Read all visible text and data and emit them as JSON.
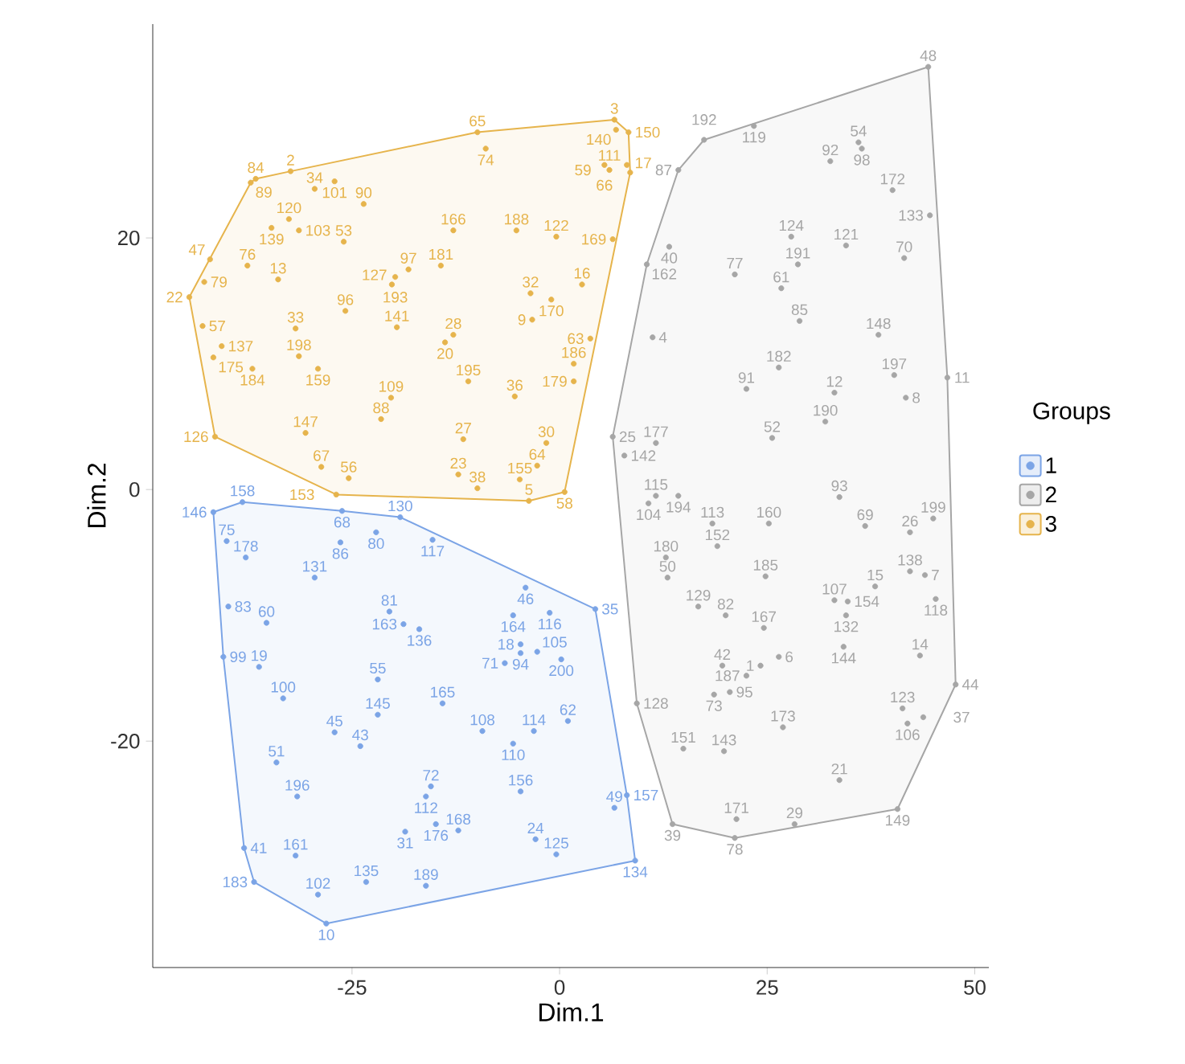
{
  "chart_data": {
    "type": "scatter",
    "xlabel": "Dim.1",
    "ylabel": "Dim.2",
    "legend_title": "Groups",
    "legend": "right",
    "marker": "circle",
    "grid": false,
    "xlim": [
      -49,
      51.7
    ],
    "ylim": [
      -38,
      37
    ],
    "xticks": [
      -25,
      0,
      25,
      50
    ],
    "yticks": [
      -20,
      0,
      20
    ],
    "series": [
      {
        "name": "1",
        "color": "#7ba4e6",
        "x": [
          -41.7,
          -38.2,
          -19.2,
          -26.2,
          -22.1,
          -40.1,
          -26.4,
          -15.3,
          -37.8,
          -29.5,
          -4.1,
          -5.6,
          -1.2,
          4.3,
          -39.9,
          -20.5,
          -35.3,
          -18.8,
          -16.9,
          -4.7,
          -4.7,
          -2.7,
          -6.6,
          0.2,
          -40.5,
          -36.2,
          -33.3,
          -21.9,
          -14.1,
          -21.9,
          -9.3,
          -3.1,
          1.0,
          -27.1,
          -24.0,
          -5.6,
          -34.1,
          -15.5,
          -16.1,
          -4.7,
          8.1,
          6.6,
          -31.6,
          -14.9,
          -18.6,
          -12.2,
          -2.9,
          -0.4,
          9.1,
          -38.0,
          -31.8,
          -36.8,
          -23.3,
          -16.1,
          -29.1,
          -28.1
        ],
        "values": [
          -1.8,
          -1.0,
          -2.2,
          -1.7,
          -3.4,
          -4.1,
          -4.2,
          -4.0,
          -5.4,
          -7.0,
          -7.8,
          -10.0,
          -9.8,
          -9.5,
          -9.3,
          -9.7,
          -10.6,
          -10.7,
          -11.1,
          -12.3,
          -13.0,
          -12.9,
          -13.8,
          -13.5,
          -13.3,
          -14.1,
          -16.6,
          -15.1,
          -17.0,
          -17.9,
          -19.2,
          -19.2,
          -18.4,
          -19.3,
          -20.4,
          -20.2,
          -21.7,
          -23.6,
          -24.4,
          -24.0,
          -24.3,
          -25.3,
          -24.4,
          -26.6,
          -27.2,
          -27.1,
          -27.8,
          -29.0,
          -29.5,
          -28.5,
          -29.1,
          -31.2,
          -31.2,
          -31.5,
          -32.2,
          -34.5
        ]
      },
      {
        "name": "2",
        "color": "#a6a6a6",
        "x": [
          44.4,
          23.4,
          17.4,
          14.3,
          36.0,
          36.4,
          32.6,
          40.1,
          44.6,
          13.2,
          27.9,
          34.5,
          41.5,
          10.5,
          21.1,
          28.7,
          26.7,
          28.9,
          38.4,
          11.2,
          26.4,
          40.3,
          46.7,
          22.5,
          33.1,
          41.7,
          6.4,
          11.6,
          32.0,
          25.6,
          7.8,
          11.6,
          10.7,
          14.3,
          45.0,
          18.4,
          25.2,
          33.7,
          36.8,
          42.2,
          12.8,
          19.0,
          13.0,
          24.8,
          42.2,
          44.0,
          38.0,
          33.1,
          34.7,
          45.3,
          16.7,
          20.0,
          24.6,
          34.5,
          26.4,
          24.2,
          19.6,
          22.5,
          34.2,
          43.4,
          9.3,
          18.6,
          20.5,
          26.9,
          41.3,
          43.8,
          41.9,
          47.7,
          14.9,
          19.8,
          33.7,
          13.6,
          21.3,
          28.3,
          21.1,
          40.7
        ],
        "values": [
          33.6,
          28.9,
          27.8,
          25.4,
          27.6,
          27.1,
          26.1,
          23.8,
          21.8,
          19.3,
          20.1,
          19.4,
          18.4,
          17.9,
          17.1,
          17.9,
          16.0,
          13.4,
          12.3,
          12.1,
          9.7,
          9.1,
          8.9,
          8.0,
          7.7,
          7.3,
          4.2,
          3.7,
          5.4,
          4.1,
          2.7,
          -0.5,
          -1.1,
          -0.5,
          -2.3,
          -2.7,
          -2.7,
          -0.6,
          -2.9,
          -3.4,
          -5.4,
          -4.5,
          -7.0,
          -6.9,
          -6.5,
          -6.8,
          -7.7,
          -8.8,
          -8.9,
          -8.7,
          -9.3,
          -10.0,
          -11.0,
          -10.0,
          -13.3,
          -14.0,
          -14.0,
          -14.8,
          -12.5,
          -13.2,
          -17.0,
          -16.3,
          -16.1,
          -18.9,
          -17.4,
          -18.1,
          -18.6,
          -15.5,
          -20.6,
          -20.8,
          -23.1,
          -26.6,
          -26.2,
          -26.6,
          -27.7,
          -25.4
        ]
      },
      {
        "name": "3",
        "color": "#e6b44c",
        "x": [
          -9.9,
          6.6,
          6.8,
          8.3,
          8.1,
          8.5,
          5.4,
          6.0,
          -8.9,
          -36.6,
          -32.4,
          -27.1,
          -37.2,
          -29.5,
          -32.6,
          -23.6,
          -34.7,
          -31.4,
          -26.0,
          -18.2,
          -12.8,
          -5.2,
          -0.4,
          6.4,
          -42.8,
          -42.1,
          -37.6,
          -33.9,
          -19.8,
          -20.2,
          -14.3,
          -3.5,
          2.7,
          -1.0,
          -44.6,
          -43.0,
          -31.8,
          -25.8,
          -19.6,
          -12.8,
          -13.8,
          -3.3,
          1.7,
          3.7,
          -40.7,
          -41.7,
          -31.4,
          -37.0,
          -29.1,
          -20.3,
          1.7,
          -5.4,
          -11.0,
          -11.6,
          -21.5,
          -30.6,
          -41.5,
          -1.6,
          -2.7,
          -28.7,
          -25.4,
          -12.2,
          -4.8,
          0.6,
          -26.9,
          -9.9,
          -3.7
        ],
        "values": [
          28.4,
          29.4,
          28.6,
          28.4,
          25.8,
          25.2,
          25.8,
          25.4,
          27.1,
          24.7,
          25.3,
          24.5,
          24.4,
          23.9,
          21.5,
          22.7,
          20.8,
          20.6,
          19.7,
          17.5,
          20.6,
          20.6,
          20.1,
          19.9,
          16.5,
          18.3,
          17.8,
          16.7,
          16.9,
          16.3,
          17.8,
          15.6,
          16.3,
          15.1,
          15.3,
          13.0,
          12.8,
          14.2,
          12.9,
          12.3,
          11.7,
          13.5,
          10.0,
          12.0,
          11.4,
          10.5,
          10.6,
          9.6,
          9.6,
          7.3,
          8.6,
          7.4,
          8.6,
          4.0,
          5.6,
          4.5,
          4.2,
          3.7,
          1.9,
          1.8,
          0.9,
          1.2,
          0.8,
          -0.2,
          -0.4,
          0.1,
          -0.9
        ]
      }
    ],
    "annotations": [
      {
        "text": "146",
        "x": -41.7,
        "y": -1.8
      },
      {
        "text": "158",
        "x": -38.2,
        "y": -1.0
      },
      {
        "text": "130",
        "x": -19.2,
        "y": -2.2
      },
      {
        "text": "68",
        "x": -26.2,
        "y": -1.7
      },
      {
        "text": "80",
        "x": -22.1,
        "y": -3.4
      },
      {
        "text": "75",
        "x": -40.1,
        "y": -4.1
      },
      {
        "text": "86",
        "x": -26.4,
        "y": -4.2
      },
      {
        "text": "117",
        "x": -15.3,
        "y": -4.0
      },
      {
        "text": "178",
        "x": -37.8,
        "y": -5.4
      },
      {
        "text": "131",
        "x": -29.5,
        "y": -7.0
      },
      {
        "text": "46",
        "x": -4.1,
        "y": -7.8
      },
      {
        "text": "164",
        "x": -5.6,
        "y": -10.0
      },
      {
        "text": "116",
        "x": -1.2,
        "y": -9.8
      },
      {
        "text": "35",
        "x": 4.3,
        "y": -9.5
      },
      {
        "text": "83",
        "x": -39.9,
        "y": -9.3
      },
      {
        "text": "81",
        "x": -20.5,
        "y": -9.7
      },
      {
        "text": "60",
        "x": -35.3,
        "y": -10.6
      },
      {
        "text": "163",
        "x": -18.8,
        "y": -10.7
      },
      {
        "text": "136",
        "x": -16.9,
        "y": -11.1
      },
      {
        "text": "18",
        "x": -4.7,
        "y": -12.3
      },
      {
        "text": "94",
        "x": -4.7,
        "y": -13.0
      },
      {
        "text": "105",
        "x": -2.7,
        "y": -12.9
      },
      {
        "text": "71",
        "x": -6.6,
        "y": -13.8
      },
      {
        "text": "200",
        "x": 0.2,
        "y": -13.5
      },
      {
        "text": "99",
        "x": -40.5,
        "y": -13.3
      },
      {
        "text": "19",
        "x": -36.2,
        "y": -14.1
      },
      {
        "text": "100",
        "x": -33.3,
        "y": -16.6
      },
      {
        "text": "55",
        "x": -21.9,
        "y": -15.1
      },
      {
        "text": "165",
        "x": -14.1,
        "y": -17.0
      },
      {
        "text": "145",
        "x": -21.9,
        "y": -17.9
      },
      {
        "text": "108",
        "x": -9.3,
        "y": -19.2
      },
      {
        "text": "114",
        "x": -3.1,
        "y": -19.2
      },
      {
        "text": "62",
        "x": 1.0,
        "y": -18.4
      },
      {
        "text": "45",
        "x": -27.1,
        "y": -19.3
      },
      {
        "text": "43",
        "x": -24.0,
        "y": -20.4
      },
      {
        "text": "110",
        "x": -5.6,
        "y": -20.2
      },
      {
        "text": "51",
        "x": -34.1,
        "y": -21.7
      },
      {
        "text": "72",
        "x": -15.5,
        "y": -23.6
      },
      {
        "text": "112",
        "x": -16.1,
        "y": -24.4
      },
      {
        "text": "156",
        "x": -4.7,
        "y": -24.0
      },
      {
        "text": "157",
        "x": 8.1,
        "y": -24.3
      },
      {
        "text": "49",
        "x": 6.6,
        "y": -25.3
      },
      {
        "text": "196",
        "x": -31.6,
        "y": -24.4
      },
      {
        "text": "176",
        "x": -14.9,
        "y": -26.6
      },
      {
        "text": "31",
        "x": -18.6,
        "y": -27.2
      },
      {
        "text": "168",
        "x": -12.2,
        "y": -27.1
      },
      {
        "text": "24",
        "x": -2.9,
        "y": -27.8
      },
      {
        "text": "125",
        "x": -0.4,
        "y": -29.0
      },
      {
        "text": "134",
        "x": 9.1,
        "y": -29.5
      },
      {
        "text": "41",
        "x": -38.0,
        "y": -28.5
      },
      {
        "text": "161",
        "x": -31.8,
        "y": -29.1
      },
      {
        "text": "183",
        "x": -36.8,
        "y": -31.2
      },
      {
        "text": "135",
        "x": -23.3,
        "y": -31.2
      },
      {
        "text": "189",
        "x": -16.1,
        "y": -31.5
      },
      {
        "text": "102",
        "x": -29.1,
        "y": -32.2
      },
      {
        "text": "10",
        "x": -28.1,
        "y": -34.5
      },
      {
        "text": "48",
        "x": 44.4,
        "y": 33.6
      },
      {
        "text": "119",
        "x": 23.4,
        "y": 28.9
      },
      {
        "text": "192",
        "x": 17.4,
        "y": 27.8
      },
      {
        "text": "87",
        "x": 14.3,
        "y": 25.4
      },
      {
        "text": "54",
        "x": 36.0,
        "y": 27.6
      },
      {
        "text": "98",
        "x": 36.4,
        "y": 27.1
      },
      {
        "text": "92",
        "x": 32.6,
        "y": 26.1
      },
      {
        "text": "172",
        "x": 40.1,
        "y": 23.8
      },
      {
        "text": "133",
        "x": 44.6,
        "y": 21.8
      },
      {
        "text": "40",
        "x": 13.2,
        "y": 19.3
      },
      {
        "text": "124",
        "x": 27.9,
        "y": 20.1
      },
      {
        "text": "121",
        "x": 34.5,
        "y": 19.4
      },
      {
        "text": "70",
        "x": 41.5,
        "y": 18.4
      },
      {
        "text": "162",
        "x": 10.5,
        "y": 17.9
      },
      {
        "text": "77",
        "x": 21.1,
        "y": 17.1
      },
      {
        "text": "191",
        "x": 28.7,
        "y": 17.9
      },
      {
        "text": "61",
        "x": 26.7,
        "y": 16.0
      },
      {
        "text": "85",
        "x": 28.9,
        "y": 13.4
      },
      {
        "text": "148",
        "x": 38.4,
        "y": 12.3
      },
      {
        "text": "4",
        "x": 11.2,
        "y": 12.1
      },
      {
        "text": "182",
        "x": 26.4,
        "y": 9.7
      },
      {
        "text": "197",
        "x": 40.3,
        "y": 9.1
      },
      {
        "text": "11",
        "x": 46.7,
        "y": 8.9
      },
      {
        "text": "91",
        "x": 22.5,
        "y": 8.0
      },
      {
        "text": "12",
        "x": 33.1,
        "y": 7.7
      },
      {
        "text": "8",
        "x": 41.7,
        "y": 7.3
      },
      {
        "text": "25",
        "x": 6.4,
        "y": 4.2
      },
      {
        "text": "177",
        "x": 11.6,
        "y": 3.7
      },
      {
        "text": "190",
        "x": 32.0,
        "y": 5.4
      },
      {
        "text": "52",
        "x": 25.6,
        "y": 4.1
      },
      {
        "text": "142",
        "x": 7.8,
        "y": 2.7
      },
      {
        "text": "115",
        "x": 11.6,
        "y": -0.5
      },
      {
        "text": "104",
        "x": 10.7,
        "y": -1.1
      },
      {
        "text": "194",
        "x": 14.3,
        "y": -0.5
      },
      {
        "text": "199",
        "x": 45.0,
        "y": -2.3
      },
      {
        "text": "113",
        "x": 18.4,
        "y": -2.7
      },
      {
        "text": "160",
        "x": 25.2,
        "y": -2.7
      },
      {
        "text": "93",
        "x": 33.7,
        "y": -0.6
      },
      {
        "text": "69",
        "x": 36.8,
        "y": -2.9
      },
      {
        "text": "26",
        "x": 42.2,
        "y": -3.4
      },
      {
        "text": "180",
        "x": 12.8,
        "y": -5.4
      },
      {
        "text": "152",
        "x": 19.0,
        "y": -4.5
      },
      {
        "text": "50",
        "x": 13.0,
        "y": -7.0
      },
      {
        "text": "185",
        "x": 24.8,
        "y": -6.9
      },
      {
        "text": "138",
        "x": 42.2,
        "y": -6.5
      },
      {
        "text": "7",
        "x": 44.0,
        "y": -6.8
      },
      {
        "text": "15",
        "x": 38.0,
        "y": -7.7
      },
      {
        "text": "107",
        "x": 33.1,
        "y": -8.8
      },
      {
        "text": "154",
        "x": 34.7,
        "y": -8.9
      },
      {
        "text": "118",
        "x": 45.3,
        "y": -8.7
      },
      {
        "text": "129",
        "x": 16.7,
        "y": -9.3
      },
      {
        "text": "82",
        "x": 20.0,
        "y": -10.0
      },
      {
        "text": "167",
        "x": 24.6,
        "y": -11.0
      },
      {
        "text": "132",
        "x": 34.5,
        "y": -10.0
      },
      {
        "text": "6",
        "x": 26.4,
        "y": -13.3
      },
      {
        "text": "1",
        "x": 24.2,
        "y": -14.0
      },
      {
        "text": "42",
        "x": 19.6,
        "y": -14.0
      },
      {
        "text": "187",
        "x": 22.5,
        "y": -14.8
      },
      {
        "text": "144",
        "x": 34.2,
        "y": -12.5
      },
      {
        "text": "14",
        "x": 43.4,
        "y": -13.2
      },
      {
        "text": "128",
        "x": 9.3,
        "y": -17.0
      },
      {
        "text": "73",
        "x": 18.6,
        "y": -16.3
      },
      {
        "text": "95",
        "x": 20.5,
        "y": -16.1
      },
      {
        "text": "173",
        "x": 26.9,
        "y": -18.9
      },
      {
        "text": "123",
        "x": 41.3,
        "y": -17.4
      },
      {
        "text": "37",
        "x": 43.8,
        "y": -18.1
      },
      {
        "text": "106",
        "x": 41.9,
        "y": -18.6
      },
      {
        "text": "44",
        "x": 47.7,
        "y": -15.5
      },
      {
        "text": "151",
        "x": 14.9,
        "y": -20.6
      },
      {
        "text": "143",
        "x": 19.8,
        "y": -20.8
      },
      {
        "text": "21",
        "x": 33.7,
        "y": -23.1
      },
      {
        "text": "39",
        "x": 13.6,
        "y": -26.6
      },
      {
        "text": "171",
        "x": 21.3,
        "y": -26.2
      },
      {
        "text": "29",
        "x": 28.3,
        "y": -26.6
      },
      {
        "text": "78",
        "x": 21.1,
        "y": -27.7
      },
      {
        "text": "149",
        "x": 40.7,
        "y": -25.4
      },
      {
        "text": "65",
        "x": -9.9,
        "y": 28.4
      },
      {
        "text": "3",
        "x": 6.6,
        "y": 29.4
      },
      {
        "text": "140",
        "x": 6.8,
        "y": 28.6
      },
      {
        "text": "150",
        "x": 8.3,
        "y": 28.4
      },
      {
        "text": "111",
        "x": 8.1,
        "y": 25.8
      },
      {
        "text": "17",
        "x": 8.5,
        "y": 25.2
      },
      {
        "text": "66",
        "x": 5.4,
        "y": 25.8
      },
      {
        "text": "59",
        "x": 6.0,
        "y": 25.4
      },
      {
        "text": "74",
        "x": -8.9,
        "y": 27.1
      },
      {
        "text": "84",
        "x": -36.6,
        "y": 24.7
      },
      {
        "text": "2",
        "x": -32.4,
        "y": 25.3
      },
      {
        "text": "101",
        "x": -27.1,
        "y": 24.5
      },
      {
        "text": "89",
        "x": -37.2,
        "y": 24.4
      },
      {
        "text": "34",
        "x": -29.5,
        "y": 23.9
      },
      {
        "text": "120",
        "x": -32.6,
        "y": 21.5
      },
      {
        "text": "90",
        "x": -23.6,
        "y": 22.7
      },
      {
        "text": "139",
        "x": -34.7,
        "y": 20.8
      },
      {
        "text": "103",
        "x": -31.4,
        "y": 20.6
      },
      {
        "text": "53",
        "x": -26.0,
        "y": 19.7
      },
      {
        "text": "97",
        "x": -18.2,
        "y": 17.5
      },
      {
        "text": "166",
        "x": -12.8,
        "y": 20.6
      },
      {
        "text": "188",
        "x": -5.2,
        "y": 20.6
      },
      {
        "text": "122",
        "x": -0.4,
        "y": 20.1
      },
      {
        "text": "169",
        "x": 6.4,
        "y": 19.9
      },
      {
        "text": "79",
        "x": -42.8,
        "y": 16.5
      },
      {
        "text": "47",
        "x": -42.1,
        "y": 18.3
      },
      {
        "text": "76",
        "x": -37.6,
        "y": 17.8
      },
      {
        "text": "13",
        "x": -33.9,
        "y": 16.7
      },
      {
        "text": "193",
        "x": -19.8,
        "y": 16.9
      },
      {
        "text": "127",
        "x": -20.2,
        "y": 16.3
      },
      {
        "text": "181",
        "x": -14.3,
        "y": 17.8
      },
      {
        "text": "32",
        "x": -3.5,
        "y": 15.6
      },
      {
        "text": "16",
        "x": 2.7,
        "y": 16.3
      },
      {
        "text": "170",
        "x": -1.0,
        "y": 15.1
      },
      {
        "text": "22",
        "x": -44.6,
        "y": 15.3
      },
      {
        "text": "57",
        "x": -43.0,
        "y": 13.0
      },
      {
        "text": "33",
        "x": -31.8,
        "y": 12.8
      },
      {
        "text": "96",
        "x": -25.8,
        "y": 14.2
      },
      {
        "text": "141",
        "x": -19.6,
        "y": 12.9
      },
      {
        "text": "28",
        "x": -12.8,
        "y": 12.3
      },
      {
        "text": "20",
        "x": -13.8,
        "y": 11.7
      },
      {
        "text": "9",
        "x": -3.3,
        "y": 13.5
      },
      {
        "text": "186",
        "x": 1.7,
        "y": 10.0
      },
      {
        "text": "63",
        "x": 3.7,
        "y": 12.0
      },
      {
        "text": "137",
        "x": -40.7,
        "y": 11.4
      },
      {
        "text": "175",
        "x": -41.7,
        "y": 10.5
      },
      {
        "text": "198",
        "x": -31.4,
        "y": 10.6
      },
      {
        "text": "184",
        "x": -37.0,
        "y": 9.6
      },
      {
        "text": "159",
        "x": -29.1,
        "y": 9.6
      },
      {
        "text": "109",
        "x": -20.3,
        "y": 7.3
      },
      {
        "text": "179",
        "x": 1.7,
        "y": 8.6
      },
      {
        "text": "36",
        "x": -5.4,
        "y": 7.4
      },
      {
        "text": "195",
        "x": -11.0,
        "y": 8.6
      },
      {
        "text": "27",
        "x": -11.6,
        "y": 4.0
      },
      {
        "text": "88",
        "x": -21.5,
        "y": 5.6
      },
      {
        "text": "147",
        "x": -30.6,
        "y": 4.5
      },
      {
        "text": "126",
        "x": -41.5,
        "y": 4.2
      },
      {
        "text": "30",
        "x": -1.6,
        "y": 3.7
      },
      {
        "text": "64",
        "x": -2.7,
        "y": 1.9
      },
      {
        "text": "67",
        "x": -28.7,
        "y": 1.8
      },
      {
        "text": "56",
        "x": -25.4,
        "y": 0.9
      },
      {
        "text": "23",
        "x": -12.2,
        "y": 1.2
      },
      {
        "text": "155",
        "x": -4.8,
        "y": 0.8
      },
      {
        "text": "58",
        "x": 0.6,
        "y": -0.2
      },
      {
        "text": "153",
        "x": -26.9,
        "y": -0.4
      },
      {
        "text": "38",
        "x": -9.9,
        "y": 0.1
      },
      {
        "text": "5",
        "x": -3.7,
        "y": -0.9
      }
    ]
  }
}
